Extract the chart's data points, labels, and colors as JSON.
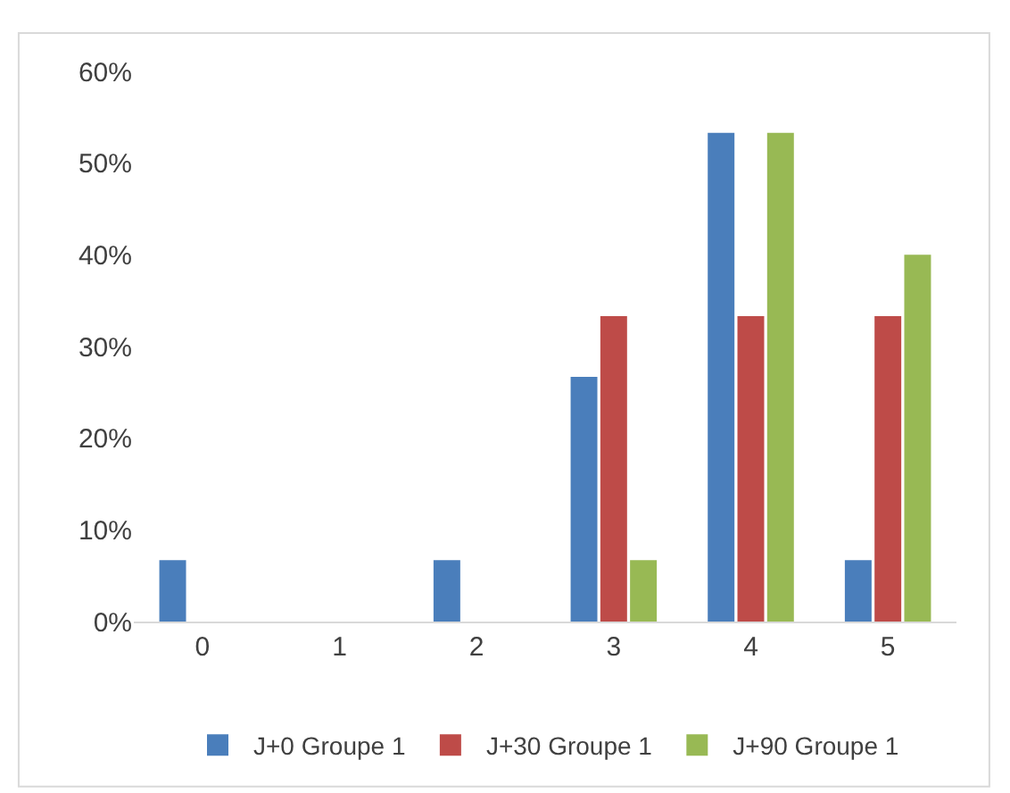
{
  "chart_data": {
    "type": "bar",
    "categories": [
      "0",
      "1",
      "2",
      "3",
      "4",
      "5"
    ],
    "series": [
      {
        "name": "J+0 Groupe 1",
        "color": "#4a7ebb",
        "values": [
          6.7,
          0,
          6.7,
          26.7,
          53.3,
          6.7
        ]
      },
      {
        "name": "J+30 Groupe 1",
        "color": "#be4b48",
        "values": [
          0,
          0,
          0,
          33.3,
          33.3,
          33.3
        ]
      },
      {
        "name": "J+90 Groupe 1",
        "color": "#98b954",
        "values": [
          0,
          0,
          0,
          6.7,
          53.3,
          40
        ]
      }
    ],
    "ylim": [
      0,
      60
    ],
    "yticks": [
      {
        "value": 0,
        "label": "0%"
      },
      {
        "value": 10,
        "label": "10%"
      },
      {
        "value": 20,
        "label": "20%"
      },
      {
        "value": 30,
        "label": "30%"
      },
      {
        "value": 40,
        "label": "40%"
      },
      {
        "value": 50,
        "label": "50%"
      },
      {
        "value": 60,
        "label": "60%"
      }
    ],
    "grid": false,
    "legend": "bottom"
  }
}
